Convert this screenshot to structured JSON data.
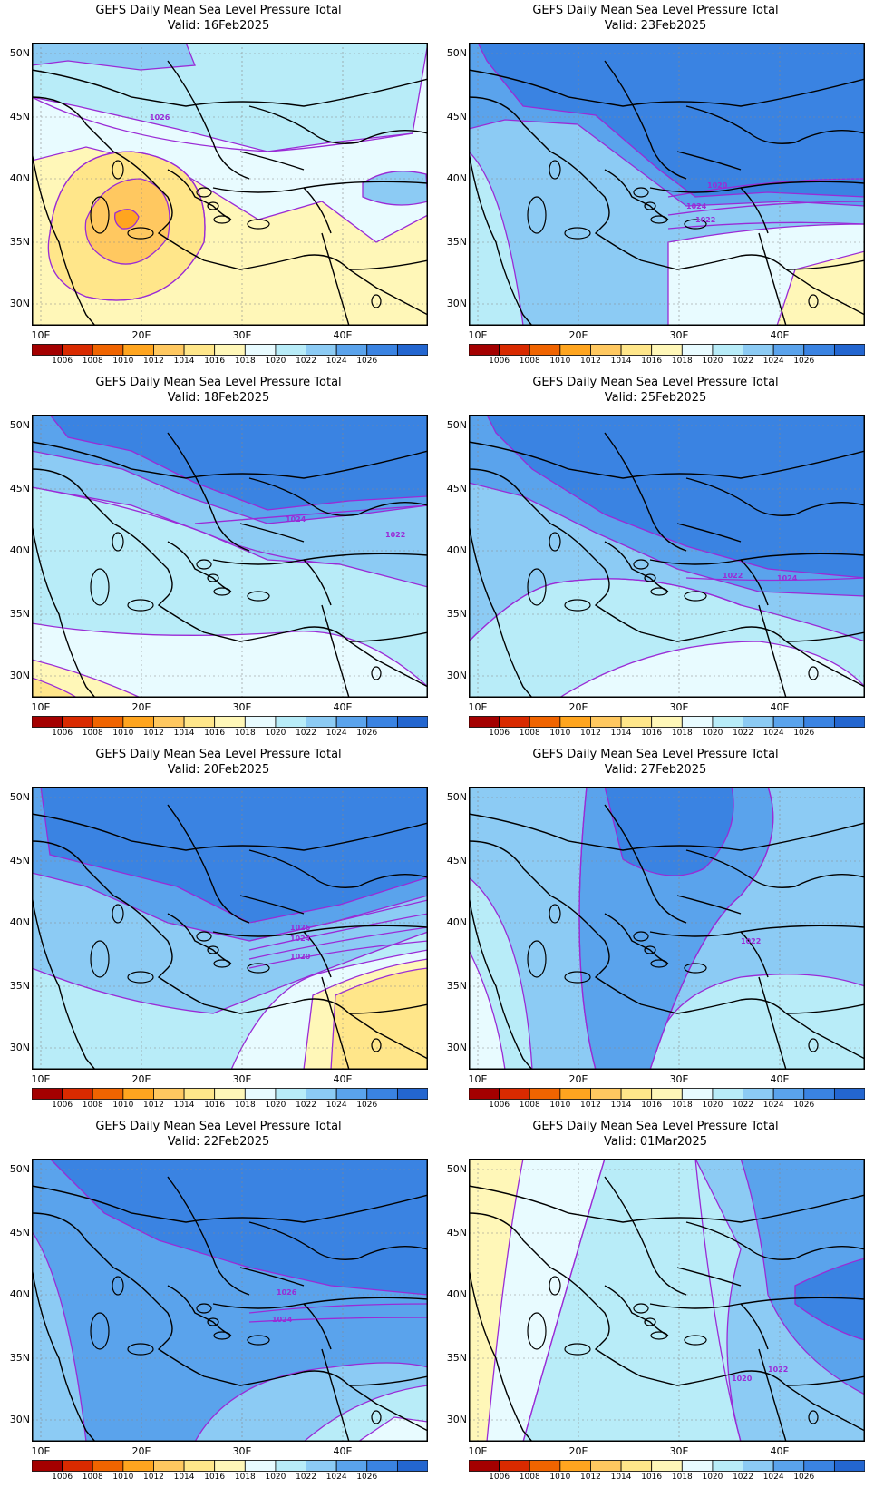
{
  "colors": {
    "levels": [
      1006,
      1008,
      1010,
      1012,
      1014,
      1016,
      1018,
      1020,
      1022,
      1024,
      1026
    ],
    "scale": [
      "#a40000",
      "#d92a00",
      "#f06400",
      "#ffa51f",
      "#ffc860",
      "#ffe68a",
      "#fff7b8",
      "#e8fbff",
      "#b8ecf8",
      "#8ccbf4",
      "#5aa3ec",
      "#3a83e2",
      "#2366d0"
    ],
    "contour": "#9a2bd6",
    "border": "#000000"
  },
  "axis": {
    "lat_labels": [
      "50N",
      "45N",
      "40N",
      "35N",
      "30N"
    ],
    "lon_labels": [
      "10E",
      "20E",
      "30E",
      "40E"
    ]
  },
  "panels": [
    {
      "title": "GEFS Daily Mean Sea Level Pressure Total",
      "valid": "Valid: 16Feb2025",
      "background_level": 1016,
      "regions": [
        [
          1018,
          "M0,0 L437,0 L437,190 L380,220 L320,175 L250,195 L160,140 L60,115 L0,130 Z"
        ],
        [
          1020,
          "M0,0 L437,0 L420,100 L330,110 L260,120 L160,95 L50,70 L0,60 Z"
        ],
        [
          1022,
          "M0,0 L170,0 L180,25 L120,30 L40,20 L0,25 Z"
        ],
        [
          1014,
          "M20,210 Q30,120 110,120 Q200,130 190,220 Q150,300 60,280 Q10,260 20,210 Z"
        ],
        [
          1012,
          "M60,195 Q80,150 120,150 Q160,160 150,215 Q120,255 85,240 Q55,225 60,195 Z"
        ],
        [
          1010,
          "M92,188 Q110,178 118,192 Q114,206 100,205 Q90,200 92,188 Z"
        ],
        [
          1022,
          "M365,155 Q395,135 435,145 L437,175 Q400,185 365,170 Z"
        ]
      ],
      "contours": [
        "M0,60 Q100,110 260,120 Q330,115 420,100",
        "M20,210 Q30,120 110,120 Q200,130 190,220 Q150,300 60,280"
      ],
      "contour_labels": [
        {
          "text": "1026"
        }
      ]
    },
    {
      "title": "GEFS Daily Mean Sea Level Pressure Total",
      "valid": "Valid: 23Feb2025",
      "background_level": 1022,
      "regions": [
        [
          1024,
          "M0,0 L437,0 L437,180 L350,175 L240,180 L200,150 L120,90 L40,85 L0,95 Z"
        ],
        [
          1026,
          "M10,0 L437,0 L437,170 L330,165 L250,170 L210,140 L140,80 L60,70 L20,20 Z"
        ],
        [
          1020,
          "M0,120 Q40,160 60,312 L0,312 Z"
        ],
        [
          1018,
          "M220,220 Q330,200 437,200 L437,312 L220,312 Z"
        ],
        [
          1016,
          "M360,250 L437,230 L437,312 L340,312 Z"
        ]
      ],
      "contours": [
        "M220,170 Q330,150 437,150",
        "M220,190 Q330,175 437,175",
        "M220,205 Q330,195 437,200"
      ],
      "contour_labels": [
        {
          "text": "1020"
        },
        {
          "text": "1024"
        },
        {
          "text": "1022"
        }
      ]
    },
    {
      "title": "GEFS Daily Mean Sea Level Pressure Total",
      "valid": "Valid: 18Feb2025",
      "background_level": 1020,
      "regions": [
        [
          1022,
          "M0,0 L437,0 L437,190 L340,165 L260,160 L190,130 L110,100 L0,80 Z"
        ],
        [
          1024,
          "M0,0 L437,0 L437,100 L360,110 L260,120 L170,90 L100,60 L0,40 Z"
        ],
        [
          1026,
          "M20,0 L437,0 L437,90 L350,95 L260,105 L180,75 L110,40 L40,25 Z"
        ],
        [
          1018,
          "M0,230 Q120,250 280,240 Q360,230 437,300 L437,312 L0,312 Z"
        ],
        [
          1016,
          "M0,270 Q60,285 120,312 L0,312 Z"
        ],
        [
          1014,
          "M0,290 Q30,300 50,312 L0,312 Z"
        ]
      ],
      "contours": [
        "M0,80 Q110,100 190,130 Q260,160 340,165",
        "M180,120 Q300,110 437,100"
      ],
      "contour_labels": [
        {
          "text": "1024"
        },
        {
          "text": "1022"
        }
      ]
    },
    {
      "title": "GEFS Daily Mean Sea Level Pressure Total",
      "valid": "Valid: 25Feb2025",
      "background_level": 1022,
      "regions": [
        [
          1024,
          "M0,0 L437,0 L437,200 L320,195 L230,170 L140,130 L60,90 L0,75 Z"
        ],
        [
          1026,
          "M20,0 L437,0 L437,180 L330,170 L240,145 L150,110 L70,60 L30,20 Z"
        ],
        [
          1020,
          "M0,250 Q60,190 100,185 Q200,170 300,210 Q380,230 437,250 L437,312 L0,312 Z"
        ],
        [
          1018,
          "M100,312 Q200,250 320,250 Q400,260 437,300 L437,312 Z"
        ]
      ],
      "contours": [
        "M0,250 Q60,190 100,185 Q200,170 300,210",
        "M240,180 Q330,185 437,180"
      ],
      "contour_labels": [
        {
          "text": "1022"
        },
        {
          "text": "1024"
        }
      ]
    },
    {
      "title": "GEFS Daily Mean Sea Level Pressure Total",
      "valid": "Valid: 20Feb2025",
      "background_level": 1022,
      "regions": [
        [
          1024,
          "M0,0 L437,0 L437,120 L330,150 L240,170 L150,150 L60,110 L0,95 Z"
        ],
        [
          1026,
          "M10,0 L437,0 L437,100 L340,130 L240,150 L160,110 L80,90 L20,75 Z"
        ],
        [
          1020,
          "M0,200 Q100,240 200,250 Q300,210 437,160 L437,312 L0,312 Z"
        ],
        [
          1018,
          "M220,312 Q260,220 320,205 Q380,190 437,180 L437,312 Z"
        ],
        [
          1016,
          "M300,312 L310,230 Q370,200 437,190 L437,312 Z"
        ],
        [
          1014,
          "M330,312 L335,230 Q390,205 437,200 L437,312 Z"
        ]
      ],
      "contours": [
        "M240,170 Q330,150 437,125",
        "M240,180 Q330,160 437,140",
        "M240,190 Q330,170 437,155",
        "M240,200 Q330,180 437,170"
      ],
      "contour_labels": [
        {
          "text": "1026"
        },
        {
          "text": "1024"
        },
        {
          "text": "1020"
        }
      ]
    },
    {
      "title": "GEFS Daily Mean Sea Level Pressure Total",
      "valid": "Valid: 27Feb2025",
      "background_level": 1022,
      "regions": [
        [
          1020,
          "M0,100 Q60,150 70,312 L0,312 Z"
        ],
        [
          1020,
          "M200,312 Q210,230 300,210 Q380,200 437,220 L437,312 Z"
        ],
        [
          1018,
          "M0,180 Q30,240 40,312 L0,312 Z"
        ],
        [
          1024,
          "M130,0 L330,0 Q350,60 300,120 Q250,160 200,312 L140,312 Q110,200 130,0 Z"
        ],
        [
          1026,
          "M150,0 L290,0 Q300,50 260,90 Q220,110 170,80 Z"
        ]
      ],
      "contours": [
        "M130,0 Q110,200 140,312",
        "M330,0 Q350,60 300,120 Q250,160 200,312"
      ],
      "contour_labels": [
        {
          "text": "1022"
        }
      ]
    },
    {
      "title": "GEFS Daily Mean Sea Level Pressure Total",
      "valid": "Valid: 22Feb2025",
      "background_level": 1024,
      "regions": [
        [
          1026,
          "M20,0 L437,0 L437,150 L330,140 L240,120 L140,90 L80,60 L40,20 Z"
        ],
        [
          1022,
          "M0,80 Q40,140 60,312 L0,312 Z"
        ],
        [
          1022,
          "M180,312 Q220,240 330,230 Q400,220 437,230 L437,312 Z"
        ],
        [
          1020,
          "M300,312 Q360,260 437,250 L437,312 Z"
        ],
        [
          1018,
          "M360,312 L400,285 L437,290 L437,312 Z"
        ]
      ],
      "contours": [
        "M240,170 Q330,160 437,160",
        "M240,180 Q330,175 437,175"
      ],
      "contour_labels": [
        {
          "text": "1026"
        },
        {
          "text": "1024"
        }
      ]
    },
    {
      "title": "GEFS Daily Mean Sea Level Pressure Total",
      "valid": "Valid: 01Mar2025",
      "background_level": 1020,
      "regions": [
        [
          1018,
          "M0,0 L150,0 Q120,100 60,312 L0,312 Z"
        ],
        [
          1016,
          "M0,0 L60,0 Q40,100 20,312 L0,312 Z"
        ],
        [
          1022,
          "M250,0 L437,0 L437,312 L300,312 Q270,200 300,100 Z"
        ],
        [
          1024,
          "M300,0 L437,0 L437,260 Q360,220 330,150 Q320,60 300,0 Z"
        ],
        [
          1026,
          "M360,140 Q400,120 437,110 L437,200 Q400,190 360,160 Z"
        ]
      ],
      "contours": [
        "M150,0 Q120,100 60,312",
        "M250,0 Q270,200 300,312"
      ],
      "contour_labels": [
        {
          "text": "1020"
        },
        {
          "text": "1022"
        }
      ]
    }
  ]
}
